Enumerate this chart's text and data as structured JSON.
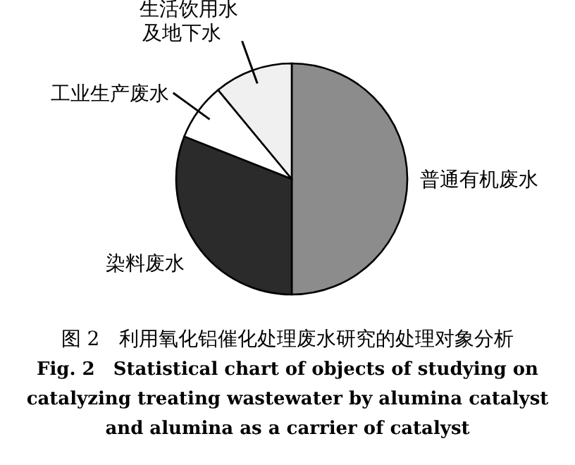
{
  "chart_data": {
    "type": "pie",
    "categories": [
      "普通有机废水",
      "染料废水",
      "工业生产废水",
      "生活饮用水及地下水"
    ],
    "values": [
      50,
      31,
      8,
      11
    ],
    "colors": [
      "#8c8c8c",
      "#2b2b2b",
      "#ffffff",
      "#f0f0f0"
    ],
    "annotations": [
      "图 2　利用氧化铝催化处理废水研究的处理对象分析",
      "Fig. 2　Statistical chart of objects of studying on",
      "catalyzing treating wastewater by alumina catalyst",
      "and alumina as a carrier of catalyst"
    ]
  }
}
